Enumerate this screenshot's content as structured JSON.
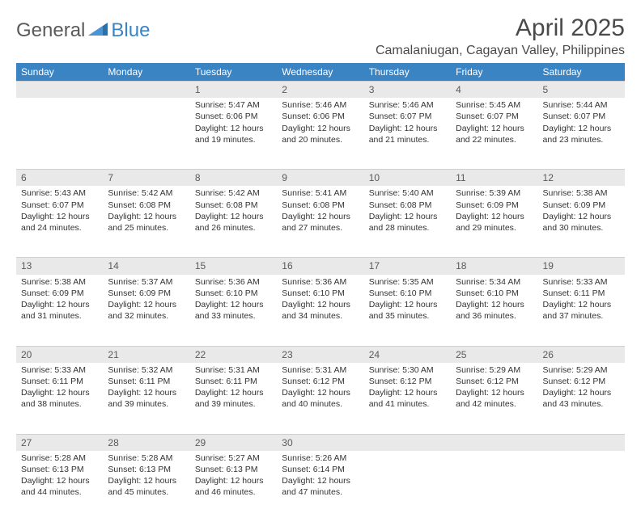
{
  "brand": {
    "part1": "General",
    "part2": "Blue"
  },
  "title": "April 2025",
  "location": "Camalaniugan, Cagayan Valley, Philippines",
  "colors": {
    "header_bg": "#3a84c4",
    "header_text": "#ffffff",
    "daynum_bg": "#e9e9e9",
    "body_text": "#333333",
    "title_text": "#4a4a4a"
  },
  "day_labels": [
    "Sunday",
    "Monday",
    "Tuesday",
    "Wednesday",
    "Thursday",
    "Friday",
    "Saturday"
  ],
  "weeks": [
    [
      null,
      null,
      {
        "n": "1",
        "sunrise": "5:47 AM",
        "sunset": "6:06 PM",
        "daylight": "12 hours and 19 minutes."
      },
      {
        "n": "2",
        "sunrise": "5:46 AM",
        "sunset": "6:06 PM",
        "daylight": "12 hours and 20 minutes."
      },
      {
        "n": "3",
        "sunrise": "5:46 AM",
        "sunset": "6:07 PM",
        "daylight": "12 hours and 21 minutes."
      },
      {
        "n": "4",
        "sunrise": "5:45 AM",
        "sunset": "6:07 PM",
        "daylight": "12 hours and 22 minutes."
      },
      {
        "n": "5",
        "sunrise": "5:44 AM",
        "sunset": "6:07 PM",
        "daylight": "12 hours and 23 minutes."
      }
    ],
    [
      {
        "n": "6",
        "sunrise": "5:43 AM",
        "sunset": "6:07 PM",
        "daylight": "12 hours and 24 minutes."
      },
      {
        "n": "7",
        "sunrise": "5:42 AM",
        "sunset": "6:08 PM",
        "daylight": "12 hours and 25 minutes."
      },
      {
        "n": "8",
        "sunrise": "5:42 AM",
        "sunset": "6:08 PM",
        "daylight": "12 hours and 26 minutes."
      },
      {
        "n": "9",
        "sunrise": "5:41 AM",
        "sunset": "6:08 PM",
        "daylight": "12 hours and 27 minutes."
      },
      {
        "n": "10",
        "sunrise": "5:40 AM",
        "sunset": "6:08 PM",
        "daylight": "12 hours and 28 minutes."
      },
      {
        "n": "11",
        "sunrise": "5:39 AM",
        "sunset": "6:09 PM",
        "daylight": "12 hours and 29 minutes."
      },
      {
        "n": "12",
        "sunrise": "5:38 AM",
        "sunset": "6:09 PM",
        "daylight": "12 hours and 30 minutes."
      }
    ],
    [
      {
        "n": "13",
        "sunrise": "5:38 AM",
        "sunset": "6:09 PM",
        "daylight": "12 hours and 31 minutes."
      },
      {
        "n": "14",
        "sunrise": "5:37 AM",
        "sunset": "6:09 PM",
        "daylight": "12 hours and 32 minutes."
      },
      {
        "n": "15",
        "sunrise": "5:36 AM",
        "sunset": "6:10 PM",
        "daylight": "12 hours and 33 minutes."
      },
      {
        "n": "16",
        "sunrise": "5:36 AM",
        "sunset": "6:10 PM",
        "daylight": "12 hours and 34 minutes."
      },
      {
        "n": "17",
        "sunrise": "5:35 AM",
        "sunset": "6:10 PM",
        "daylight": "12 hours and 35 minutes."
      },
      {
        "n": "18",
        "sunrise": "5:34 AM",
        "sunset": "6:10 PM",
        "daylight": "12 hours and 36 minutes."
      },
      {
        "n": "19",
        "sunrise": "5:33 AM",
        "sunset": "6:11 PM",
        "daylight": "12 hours and 37 minutes."
      }
    ],
    [
      {
        "n": "20",
        "sunrise": "5:33 AM",
        "sunset": "6:11 PM",
        "daylight": "12 hours and 38 minutes."
      },
      {
        "n": "21",
        "sunrise": "5:32 AM",
        "sunset": "6:11 PM",
        "daylight": "12 hours and 39 minutes."
      },
      {
        "n": "22",
        "sunrise": "5:31 AM",
        "sunset": "6:11 PM",
        "daylight": "12 hours and 39 minutes."
      },
      {
        "n": "23",
        "sunrise": "5:31 AM",
        "sunset": "6:12 PM",
        "daylight": "12 hours and 40 minutes."
      },
      {
        "n": "24",
        "sunrise": "5:30 AM",
        "sunset": "6:12 PM",
        "daylight": "12 hours and 41 minutes."
      },
      {
        "n": "25",
        "sunrise": "5:29 AM",
        "sunset": "6:12 PM",
        "daylight": "12 hours and 42 minutes."
      },
      {
        "n": "26",
        "sunrise": "5:29 AM",
        "sunset": "6:12 PM",
        "daylight": "12 hours and 43 minutes."
      }
    ],
    [
      {
        "n": "27",
        "sunrise": "5:28 AM",
        "sunset": "6:13 PM",
        "daylight": "12 hours and 44 minutes."
      },
      {
        "n": "28",
        "sunrise": "5:28 AM",
        "sunset": "6:13 PM",
        "daylight": "12 hours and 45 minutes."
      },
      {
        "n": "29",
        "sunrise": "5:27 AM",
        "sunset": "6:13 PM",
        "daylight": "12 hours and 46 minutes."
      },
      {
        "n": "30",
        "sunrise": "5:26 AM",
        "sunset": "6:14 PM",
        "daylight": "12 hours and 47 minutes."
      },
      null,
      null,
      null
    ]
  ],
  "labels": {
    "sunrise": "Sunrise:",
    "sunset": "Sunset:",
    "daylight": "Daylight:"
  }
}
